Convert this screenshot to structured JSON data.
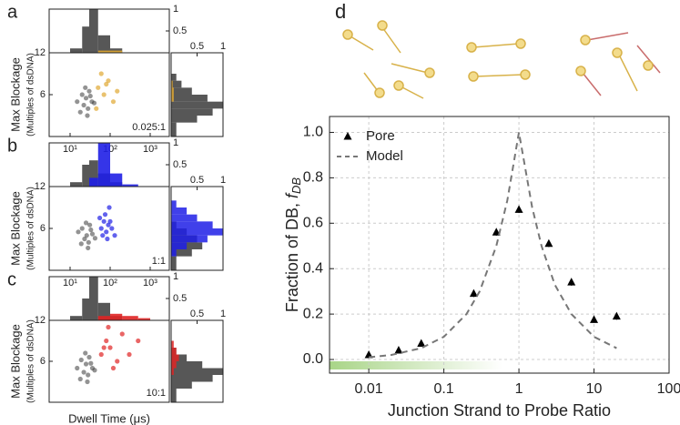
{
  "chart_data": [
    {
      "type": "scatter_hist",
      "panel_label": "a",
      "annotation": "0.025:1",
      "y_label": "Max Blockage",
      "y_label_sub": "(Multiples of dsDNA)",
      "log_x": true,
      "xlim": [
        3,
        3000
      ],
      "xticks": [
        {
          "value": 10,
          "label": "10¹"
        },
        {
          "value": 100,
          "label": "10²"
        },
        {
          "value": 1000,
          "label": "10³"
        }
      ],
      "ylim": [
        0,
        12
      ],
      "yticks": [
        6,
        12
      ],
      "control_color": "#3a3a3a",
      "sample_color": "#e0a832",
      "control": {
        "x": [
          15,
          20,
          22,
          25,
          28,
          30,
          18,
          35,
          40,
          24,
          27,
          32
        ],
        "y": [
          5,
          6,
          4.5,
          5.5,
          4,
          6.5,
          3.5,
          5,
          4.8,
          7,
          3,
          5.8
        ]
      },
      "sample": {
        "x": [
          50,
          70,
          90,
          120,
          60,
          150,
          80,
          45
        ],
        "y": [
          7,
          6,
          8,
          5,
          9,
          6.5,
          7.5,
          4
        ]
      },
      "dwell_hist": {
        "bins": [
          3,
          5,
          10,
          20,
          30,
          50,
          100,
          200,
          500,
          1000,
          3000
        ],
        "control": [
          0,
          0,
          0.1,
          0.6,
          1,
          0.4,
          0.1,
          0,
          0,
          0
        ],
        "sample": [
          0,
          0,
          0,
          0,
          0,
          0.05,
          0.05,
          0,
          0,
          0
        ],
        "ylim": [
          0,
          1
        ],
        "yticks": [
          0.5,
          1
        ]
      },
      "blockage_hist": {
        "bins": [
          0,
          2,
          3,
          4,
          5,
          6,
          7,
          8,
          9,
          10,
          12
        ],
        "control": [
          0.1,
          0.5,
          0.8,
          1,
          0.7,
          0.4,
          0.2,
          0.1,
          0,
          0
        ],
        "sample": [
          0,
          0,
          0,
          0,
          0.05,
          0.05,
          0.03,
          0,
          0,
          0
        ],
        "xlim": [
          0,
          1
        ],
        "xticks": [
          0.5,
          1
        ]
      }
    },
    {
      "type": "scatter_hist",
      "panel_label": "b",
      "annotation": "1:1",
      "y_label": "Max Blockage",
      "y_label_sub": "(Multiples of dsDNA)",
      "log_x": true,
      "xlim": [
        3,
        3000
      ],
      "xticks": [
        {
          "value": 10,
          "label": "10¹"
        },
        {
          "value": 100,
          "label": "10²"
        },
        {
          "value": 1000,
          "label": "10³"
        }
      ],
      "ylim": [
        0,
        12
      ],
      "yticks": [
        6,
        12
      ],
      "control_color": "#3a3a3a",
      "sample_color": "#1f1fe6",
      "control": {
        "x": [
          16,
          20,
          23,
          26,
          29,
          31,
          19,
          36,
          42,
          25,
          28,
          33
        ],
        "y": [
          5.5,
          6,
          4.5,
          5,
          4,
          6.5,
          3.8,
          5.2,
          4.6,
          6.8,
          3.2,
          5.8
        ]
      },
      "sample": {
        "x": [
          60,
          70,
          80,
          90,
          100,
          75,
          65,
          85,
          110,
          95,
          130,
          55
        ],
        "y": [
          6,
          7,
          5.5,
          6.5,
          7,
          8,
          5,
          4.5,
          6,
          9,
          5,
          7.5
        ]
      },
      "dwell_hist": {
        "bins": [
          3,
          5,
          10,
          20,
          30,
          50,
          100,
          200,
          500,
          1000,
          3000
        ],
        "control": [
          0,
          0,
          0.1,
          0.5,
          0.6,
          0.3,
          0.1,
          0,
          0,
          0
        ],
        "sample": [
          0,
          0,
          0,
          0,
          0.2,
          1,
          0.3,
          0.05,
          0,
          0
        ],
        "ylim": [
          0,
          1
        ],
        "yticks": [
          0.5,
          1
        ]
      },
      "blockage_hist": {
        "bins": [
          0,
          2,
          3,
          4,
          5,
          6,
          7,
          8,
          9,
          10,
          12
        ],
        "control": [
          0.1,
          0.4,
          0.6,
          0.5,
          0.3,
          0.1,
          0,
          0,
          0,
          0
        ],
        "sample": [
          0,
          0.1,
          0.3,
          0.7,
          1,
          0.8,
          0.5,
          0.3,
          0.1,
          0
        ],
        "xlim": [
          0,
          1
        ],
        "xticks": [
          0.5,
          1
        ]
      }
    },
    {
      "type": "scatter_hist",
      "panel_label": "c",
      "annotation": "10:1",
      "y_label": "Max Blockage",
      "y_label_sub": "(Multiples of dsDNA)",
      "x_label": "Dwell Time (μs)",
      "log_x": true,
      "xlim": [
        3,
        3000
      ],
      "ylim": [
        0,
        12
      ],
      "yticks": [
        6,
        12
      ],
      "control_color": "#3a3a3a",
      "sample_color": "#e02424",
      "control": {
        "x": [
          15,
          19,
          22,
          25,
          28,
          30,
          18,
          36,
          41,
          24,
          27,
          33
        ],
        "y": [
          5,
          6.2,
          4.4,
          5.6,
          4,
          6.6,
          3.4,
          5,
          4.7,
          7.2,
          3,
          5.7
        ]
      },
      "sample": {
        "x": [
          60,
          80,
          100,
          150,
          200,
          120,
          90,
          300,
          70,
          500
        ],
        "y": [
          7,
          9,
          8,
          6,
          10,
          5,
          11,
          7,
          8,
          9
        ]
      },
      "dwell_hist": {
        "bins": [
          3,
          5,
          10,
          20,
          30,
          50,
          100,
          200,
          500,
          1000,
          3000
        ],
        "control": [
          0,
          0,
          0.1,
          0.5,
          1,
          0.4,
          0.1,
          0,
          0,
          0
        ],
        "sample": [
          0,
          0,
          0,
          0,
          0,
          0.1,
          0.15,
          0.1,
          0.05,
          0
        ],
        "ylim": [
          0,
          1
        ],
        "yticks": [
          0.5,
          1
        ]
      },
      "blockage_hist": {
        "bins": [
          0,
          2,
          3,
          4,
          5,
          6,
          7,
          8,
          9,
          10,
          12
        ],
        "control": [
          0.1,
          0.4,
          0.8,
          1,
          0.6,
          0.3,
          0.1,
          0,
          0,
          0
        ],
        "sample": [
          0,
          0,
          0,
          0.05,
          0.1,
          0.15,
          0.1,
          0.05,
          0,
          0
        ],
        "xlim": [
          0,
          1
        ],
        "xticks": [
          0.5,
          1
        ]
      }
    },
    {
      "type": "scatter",
      "panel_label": "d",
      "x_label": "Junction Strand to Probe Ratio",
      "y_label": "Fraction of DB, ",
      "y_label_symbol": "f",
      "y_label_subscript": "DB",
      "log_x": true,
      "xlim": [
        0.003,
        100
      ],
      "xticks": [
        0.01,
        0.1,
        1,
        10,
        100
      ],
      "ylim": [
        -0.06,
        1.07
      ],
      "yticks": [
        {
          "value": 0,
          "label": "0.0"
        },
        0.2,
        0.4,
        0.6,
        0.8,
        {
          "value": 1,
          "label": "1.0"
        }
      ],
      "grid": true,
      "legend": "upper left",
      "series": [
        {
          "name": "Pore",
          "color": "#000000",
          "marker": "triangle",
          "x": [
            0.01,
            0.025,
            0.05,
            0.25,
            0.5,
            1,
            2.5,
            5,
            10,
            20
          ],
          "values": [
            0.02,
            0.04,
            0.07,
            0.29,
            0.56,
            0.66,
            0.51,
            0.34,
            0.175,
            0.19
          ],
          "errors": [
            0.01,
            0.01,
            0.01,
            0.015,
            0.015,
            0.015,
            0.015,
            0.015,
            0.012,
            0.015
          ]
        },
        {
          "name": "Model",
          "color": "#777777",
          "style": "dashed",
          "x": [
            0.01,
            0.02,
            0.05,
            0.1,
            0.2,
            0.3,
            0.5,
            0.7,
            1,
            1.5,
            2,
            3,
            5,
            10,
            20
          ],
          "values": [
            0.01,
            0.02,
            0.05,
            0.1,
            0.2,
            0.3,
            0.5,
            0.7,
            1,
            0.67,
            0.5,
            0.33,
            0.2,
            0.1,
            0.05
          ]
        }
      ]
    }
  ]
}
